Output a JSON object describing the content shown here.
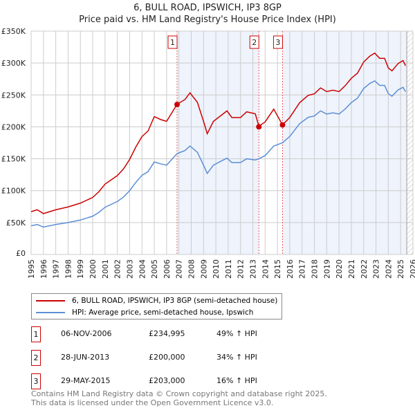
{
  "title": "6, BULL ROAD, IPSWICH, IP3 8GP",
  "subtitle": "Price paid vs. HM Land Registry's House Price Index (HPI)",
  "chart_data": {
    "type": "line",
    "xlim": [
      1995,
      2026
    ],
    "ylim": [
      0,
      350000
    ],
    "x_ticks": [
      "1995",
      "1996",
      "1997",
      "1998",
      "1999",
      "2000",
      "2001",
      "2002",
      "2003",
      "2004",
      "2005",
      "2006",
      "2007",
      "2008",
      "2009",
      "2010",
      "2011",
      "2012",
      "2013",
      "2014",
      "2015",
      "2016",
      "2017",
      "2018",
      "2019",
      "2020",
      "2021",
      "2022",
      "2023",
      "2024",
      "2025",
      "2026"
    ],
    "y_ticks": [
      {
        "v": 0,
        "label": "£0"
      },
      {
        "v": 50000,
        "label": "£50K"
      },
      {
        "v": 100000,
        "label": "£100K"
      },
      {
        "v": 150000,
        "label": "£150K"
      },
      {
        "v": 200000,
        "label": "£200K"
      },
      {
        "v": 250000,
        "label": "£250K"
      },
      {
        "v": 300000,
        "label": "£300K"
      },
      {
        "v": 350000,
        "label": "£350K"
      }
    ],
    "forecast_from": 2025.5,
    "series": [
      {
        "name": "6, BULL ROAD, IPSWICH, IP3 8GP (semi-detached house)",
        "color": "#cc0000",
        "derived_from_hpi_with_sale_premiums": true
      },
      {
        "name": "HPI: Average price, semi-detached house, Ipswich",
        "color": "#5b8ed6",
        "x": [
          1995,
          1995.5,
          1996,
          1997,
          1998,
          1999,
          2000,
          2000.5,
          2001,
          2002,
          2002.5,
          2003,
          2003.5,
          2004,
          2004.5,
          2005,
          2005.5,
          2006,
          2006.85,
          2007.5,
          2007.9,
          2008.5,
          2009,
          2009.3,
          2009.8,
          2010.5,
          2010.9,
          2011.3,
          2012,
          2012.5,
          2013.2,
          2013.49,
          2014,
          2014.7,
          2015.41,
          2016,
          2016.8,
          2017.5,
          2018,
          2018.5,
          2019,
          2019.5,
          2020,
          2020.5,
          2021,
          2021.5,
          2022,
          2022.5,
          2022.9,
          2023.3,
          2023.7,
          2024,
          2024.3,
          2024.8,
          2025.2,
          2025.4
        ],
        "y": [
          45000,
          47000,
          43000,
          47000,
          50000,
          54000,
          60000,
          66000,
          74000,
          83000,
          90000,
          100000,
          113000,
          124000,
          130000,
          145000,
          142000,
          140000,
          158000,
          163000,
          170000,
          160000,
          140000,
          127000,
          140000,
          147000,
          151000,
          144000,
          144000,
          150000,
          148000,
          150000,
          155000,
          170000,
          175000,
          185000,
          205000,
          215000,
          217000,
          225000,
          220000,
          222000,
          220000,
          228000,
          238000,
          245000,
          260000,
          268000,
          272000,
          265000,
          265000,
          252000,
          248000,
          258000,
          262000,
          255000
        ]
      }
    ],
    "sales": [
      {
        "n": "1",
        "x": 2006.85,
        "date": "06-NOV-2006",
        "price": 234995,
        "price_label": "£234,995",
        "hpi": "49% ↑ HPI",
        "ratio": 1.49
      },
      {
        "n": "2",
        "x": 2013.49,
        "date": "28-JUN-2013",
        "price": 200000,
        "price_label": "£200,000",
        "hpi": "34% ↑ HPI",
        "ratio": 1.34
      },
      {
        "n": "3",
        "x": 2015.41,
        "date": "29-MAY-2015",
        "price": 203000,
        "price_label": "£203,000",
        "hpi": "16% ↑ HPI",
        "ratio": 1.16
      }
    ]
  },
  "legend": {
    "red": "6, BULL ROAD, IPSWICH, IP3 8GP (semi-detached house)",
    "blue": "HPI: Average price, semi-detached house, Ipswich"
  },
  "footer": {
    "line1": "Contains HM Land Registry data © Crown copyright and database right 2025.",
    "line2": "This data is licensed under the Open Government Licence v3.0."
  }
}
